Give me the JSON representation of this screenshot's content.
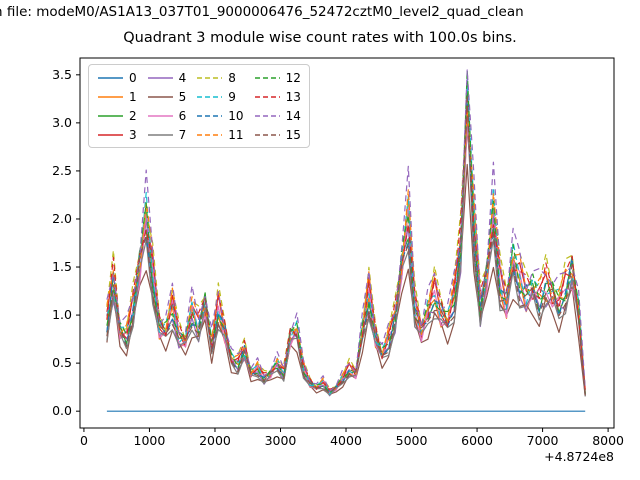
{
  "header": {
    "file_line": "n file: modeM0/AS1A13_037T01_9000006476_52472cztM0_level2_quad_clean",
    "title": "Quadrant 3 module wise count rates with 100.0s bins."
  },
  "axes": {
    "xlim": [
      -60,
      8090
    ],
    "ylim": [
      -0.175,
      3.675
    ],
    "x_ticks": [
      0,
      1000,
      2000,
      3000,
      4000,
      5000,
      6000,
      7000,
      8000
    ],
    "x_tick_labels": [
      "0",
      "1000",
      "2000",
      "3000",
      "4000",
      "5000",
      "6000",
      "7000",
      "8000"
    ],
    "y_ticks": [
      0.0,
      0.5,
      1.0,
      1.5,
      2.0,
      2.5,
      3.0,
      3.5
    ],
    "y_tick_labels": [
      "0.0",
      "0.5",
      "1.0",
      "1.5",
      "2.0",
      "2.5",
      "3.0",
      "3.5"
    ],
    "offset_text": "+4.8724e8",
    "grid": false
  },
  "chart_data": {
    "type": "line",
    "title": "Quadrant 3 module wise count rates with 100.0s bins.",
    "xlabel": "",
    "ylabel": "",
    "x_axis_offset": "+4.8724e8",
    "x_start": 350,
    "x_step": 100,
    "ylim": [
      0,
      3.55
    ],
    "legend_position": "upper left",
    "legend_ncol": 4,
    "base": [
      0.95,
      1.4,
      0.85,
      0.8,
      1.1,
      1.55,
      2.05,
      1.45,
      0.9,
      0.85,
      1.1,
      0.8,
      0.75,
      1.05,
      0.9,
      1.15,
      0.7,
      1.1,
      0.85,
      0.55,
      0.5,
      0.65,
      0.4,
      0.45,
      0.35,
      0.4,
      0.5,
      0.4,
      0.8,
      0.85,
      0.45,
      0.3,
      0.25,
      0.3,
      0.2,
      0.25,
      0.35,
      0.45,
      0.4,
      0.85,
      1.25,
      0.8,
      0.6,
      0.75,
      1.0,
      1.55,
      2.05,
      1.1,
      0.85,
      1.05,
      1.25,
      1.05,
      0.95,
      1.2,
      1.75,
      3.3,
      2.0,
      1.1,
      1.45,
      2.1,
      1.35,
      1.15,
      1.6,
      1.4,
      1.25,
      1.3,
      1.2,
      1.35,
      1.25,
      1.15,
      1.3,
      1.5,
      1.05,
      0.2
    ],
    "jitter_amp": 0.11,
    "jitter_freq": 1.9,
    "series": [
      {
        "name": "0",
        "color": "#1f77b4",
        "dash": false,
        "flat": 0.0
      },
      {
        "name": "1",
        "color": "#ff7f0e",
        "dash": false,
        "scale": 0.93,
        "phase": 1
      },
      {
        "name": "2",
        "color": "#2ca02c",
        "dash": false,
        "scale": 0.97,
        "phase": 2
      },
      {
        "name": "3",
        "color": "#d62728",
        "dash": false,
        "scale": 1.0,
        "phase": 3
      },
      {
        "name": "4",
        "color": "#9467bd",
        "dash": false,
        "scale": 0.9,
        "phase": 4
      },
      {
        "name": "5",
        "color": "#8c564b",
        "dash": false,
        "scale": 0.8,
        "phase": 5
      },
      {
        "name": "6",
        "color": "#e377c2",
        "dash": false,
        "scale": 0.95,
        "phase": 6
      },
      {
        "name": "7",
        "color": "#7f7f7f",
        "dash": false,
        "scale": 0.86,
        "phase": 7
      },
      {
        "name": "8",
        "color": "#bcbd22",
        "dash": true,
        "scale": 1.1,
        "phase": 8
      },
      {
        "name": "9",
        "color": "#17becf",
        "dash": true,
        "scale": 1.0,
        "phase": 9
      },
      {
        "name": "10",
        "color": "#1f77b4",
        "dash": true,
        "scale": 0.96,
        "phase": 10
      },
      {
        "name": "11",
        "color": "#ff7f0e",
        "dash": true,
        "scale": 1.05,
        "phase": 11
      },
      {
        "name": "12",
        "color": "#2ca02c",
        "dash": true,
        "scale": 0.99,
        "phase": 12
      },
      {
        "name": "13",
        "color": "#d62728",
        "dash": true,
        "scale": 1.03,
        "phase": 13
      },
      {
        "name": "14",
        "color": "#9467bd",
        "dash": true,
        "scale": 1.12,
        "phase": 14
      },
      {
        "name": "15",
        "color": "#8c564b",
        "dash": true,
        "scale": 0.92,
        "phase": 15
      }
    ]
  }
}
